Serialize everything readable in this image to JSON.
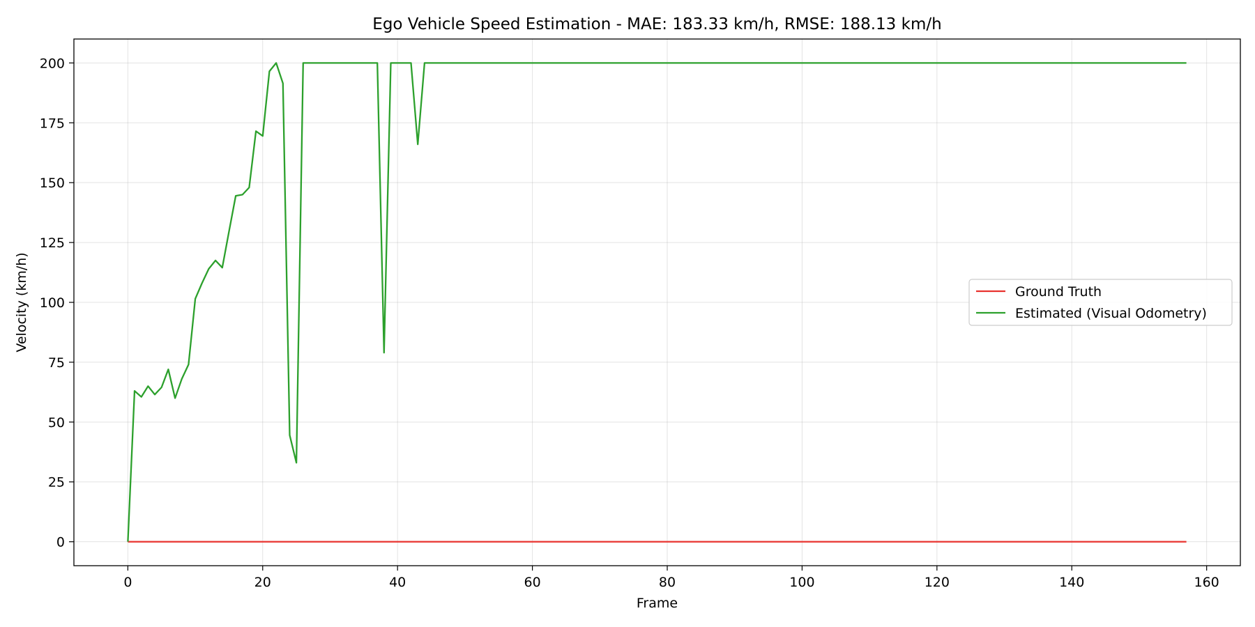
{
  "chart_data": {
    "type": "line",
    "title": "Ego Vehicle Speed Estimation - MAE: 183.33 km/h, RMSE: 188.13 km/h",
    "xlabel": "Frame",
    "ylabel": "Velocity (km/h)",
    "xlim": [
      -8,
      165
    ],
    "ylim": [
      -10,
      210
    ],
    "xticks": [
      0,
      20,
      40,
      60,
      80,
      100,
      120,
      140,
      160
    ],
    "yticks": [
      0,
      25,
      50,
      75,
      100,
      125,
      150,
      175,
      200
    ],
    "grid": true,
    "legend_position": "center-right",
    "series": [
      {
        "name": "Ground Truth",
        "color": "#e8322e",
        "points": [
          [
            0,
            0
          ],
          [
            157,
            0
          ]
        ]
      },
      {
        "name": "Estimated (Visual Odometry)",
        "color": "#2ca02c",
        "points": [
          [
            0,
            0
          ],
          [
            1,
            63
          ],
          [
            2,
            60.5
          ],
          [
            3,
            65
          ],
          [
            4,
            61.5
          ],
          [
            5,
            64.5
          ],
          [
            6,
            72
          ],
          [
            7,
            60
          ],
          [
            8,
            68
          ],
          [
            9,
            74
          ],
          [
            10,
            101.5
          ],
          [
            11,
            108
          ],
          [
            12,
            114
          ],
          [
            13,
            117.5
          ],
          [
            14,
            114.5
          ],
          [
            15,
            129.5
          ],
          [
            16,
            144.5
          ],
          [
            17,
            145
          ],
          [
            18,
            148
          ],
          [
            19,
            171.5
          ],
          [
            20,
            169.5
          ],
          [
            21,
            196.5
          ],
          [
            22,
            200
          ],
          [
            23,
            191.5
          ],
          [
            24,
            44.5
          ],
          [
            25,
            33
          ],
          [
            26,
            200
          ],
          [
            27,
            200
          ],
          [
            37,
            200
          ],
          [
            38,
            79
          ],
          [
            39,
            200
          ],
          [
            42,
            200
          ],
          [
            43,
            166
          ],
          [
            44,
            200
          ],
          [
            157,
            200
          ]
        ]
      }
    ]
  }
}
